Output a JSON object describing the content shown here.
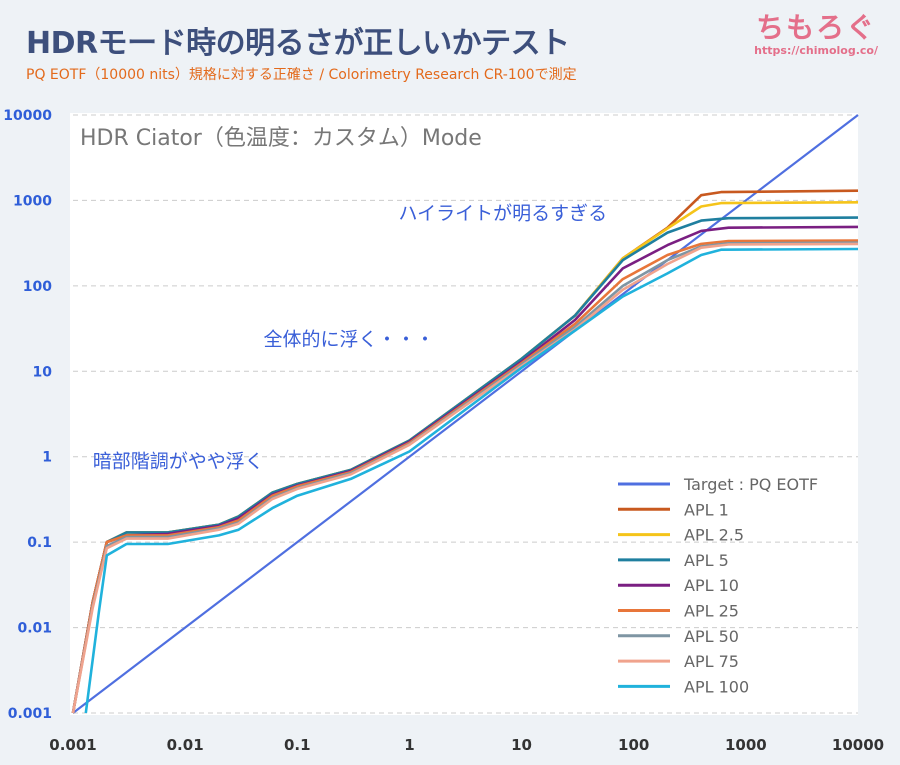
{
  "title": "HDRモード時の明るさが正しいかテスト",
  "subtitle": "PQ EOTF（10000 nits）規格に対する正確さ / Colorimetry Research CR-100で測定",
  "logo": {
    "text": "ちもろぐ",
    "url": "https://chimolog.co/"
  },
  "chart_data": {
    "type": "line",
    "title": "HDR Ciator（色温度：カスタム）Mode",
    "xscale": "log",
    "yscale": "log",
    "xlim": [
      0.001,
      10000
    ],
    "ylim": [
      0.001,
      10000
    ],
    "xticks": [
      "0.001",
      "0.01",
      "0.1",
      "1",
      "10",
      "100",
      "1000",
      "10000"
    ],
    "yticks": [
      "0.001",
      "0.01",
      "0.1",
      "1",
      "10",
      "100",
      "1000",
      "10000"
    ],
    "grid": "horizontal-dashed",
    "legend_position": "bottom-right",
    "annotations": [
      {
        "text": "ハイライトが明るすぎる",
        "x": 0.8,
        "y": 600
      },
      {
        "text": "全体的に浮く・・・",
        "x": 0.05,
        "y": 20
      },
      {
        "text": "暗部階調がやや浮く",
        "x": 0.0015,
        "y": 0.75
      }
    ],
    "series": [
      {
        "name": "Target : PQ EOTF",
        "color": "#4f6fe0",
        "points": [
          [
            0.001,
            0.001
          ],
          [
            10000,
            10000
          ]
        ]
      },
      {
        "name": "APL 1",
        "color": "#c8591f",
        "points": [
          [
            0.001,
            0.001
          ],
          [
            0.0015,
            0.02
          ],
          [
            0.002,
            0.1
          ],
          [
            0.003,
            0.13
          ],
          [
            0.007,
            0.13
          ],
          [
            0.02,
            0.16
          ],
          [
            0.03,
            0.2
          ],
          [
            0.06,
            0.38
          ],
          [
            0.1,
            0.48
          ],
          [
            0.3,
            0.7
          ],
          [
            1,
            1.55
          ],
          [
            10,
            14
          ],
          [
            30,
            45
          ],
          [
            80,
            210
          ],
          [
            200,
            480
          ],
          [
            400,
            1150
          ],
          [
            600,
            1250
          ],
          [
            10000,
            1300
          ]
        ]
      },
      {
        "name": "APL 2.5",
        "color": "#f5c41a",
        "points": [
          [
            0.001,
            0.001
          ],
          [
            0.0015,
            0.02
          ],
          [
            0.002,
            0.1
          ],
          [
            0.003,
            0.13
          ],
          [
            0.007,
            0.13
          ],
          [
            0.02,
            0.16
          ],
          [
            0.03,
            0.2
          ],
          [
            0.06,
            0.38
          ],
          [
            0.1,
            0.48
          ],
          [
            0.3,
            0.7
          ],
          [
            1,
            1.55
          ],
          [
            10,
            14
          ],
          [
            30,
            45
          ],
          [
            80,
            210
          ],
          [
            200,
            470
          ],
          [
            400,
            850
          ],
          [
            600,
            930
          ],
          [
            10000,
            950
          ]
        ]
      },
      {
        "name": "APL 5",
        "color": "#1f7f9f",
        "points": [
          [
            0.001,
            0.001
          ],
          [
            0.0015,
            0.02
          ],
          [
            0.002,
            0.1
          ],
          [
            0.003,
            0.13
          ],
          [
            0.007,
            0.13
          ],
          [
            0.02,
            0.16
          ],
          [
            0.03,
            0.2
          ],
          [
            0.06,
            0.38
          ],
          [
            0.1,
            0.48
          ],
          [
            0.3,
            0.7
          ],
          [
            1,
            1.55
          ],
          [
            10,
            14
          ],
          [
            30,
            45
          ],
          [
            80,
            200
          ],
          [
            200,
            420
          ],
          [
            400,
            580
          ],
          [
            700,
            620
          ],
          [
            10000,
            630
          ]
        ]
      },
      {
        "name": "APL 10",
        "color": "#7a1f82",
        "points": [
          [
            0.001,
            0.001
          ],
          [
            0.0015,
            0.02
          ],
          [
            0.002,
            0.1
          ],
          [
            0.003,
            0.12
          ],
          [
            0.007,
            0.125
          ],
          [
            0.02,
            0.155
          ],
          [
            0.03,
            0.19
          ],
          [
            0.06,
            0.36
          ],
          [
            0.1,
            0.46
          ],
          [
            0.3,
            0.68
          ],
          [
            1,
            1.5
          ],
          [
            10,
            13
          ],
          [
            30,
            40
          ],
          [
            80,
            160
          ],
          [
            200,
            300
          ],
          [
            400,
            440
          ],
          [
            700,
            480
          ],
          [
            10000,
            490
          ]
        ]
      },
      {
        "name": "APL 25",
        "color": "#e8763a",
        "points": [
          [
            0.001,
            0.001
          ],
          [
            0.0015,
            0.02
          ],
          [
            0.002,
            0.1
          ],
          [
            0.003,
            0.12
          ],
          [
            0.007,
            0.12
          ],
          [
            0.02,
            0.15
          ],
          [
            0.03,
            0.18
          ],
          [
            0.06,
            0.35
          ],
          [
            0.1,
            0.45
          ],
          [
            0.3,
            0.66
          ],
          [
            1,
            1.45
          ],
          [
            10,
            12.5
          ],
          [
            30,
            36
          ],
          [
            80,
            120
          ],
          [
            200,
            230
          ],
          [
            400,
            310
          ],
          [
            700,
            335
          ],
          [
            10000,
            340
          ]
        ]
      },
      {
        "name": "APL 50",
        "color": "#7f95a3",
        "points": [
          [
            0.001,
            0.001
          ],
          [
            0.0015,
            0.018
          ],
          [
            0.002,
            0.09
          ],
          [
            0.003,
            0.115
          ],
          [
            0.007,
            0.115
          ],
          [
            0.02,
            0.145
          ],
          [
            0.03,
            0.17
          ],
          [
            0.06,
            0.33
          ],
          [
            0.1,
            0.43
          ],
          [
            0.3,
            0.64
          ],
          [
            1,
            1.4
          ],
          [
            10,
            12
          ],
          [
            30,
            33
          ],
          [
            80,
            100
          ],
          [
            200,
            200
          ],
          [
            400,
            290
          ],
          [
            700,
            315
          ],
          [
            10000,
            320
          ]
        ]
      },
      {
        "name": "APL 75",
        "color": "#f0a38d",
        "points": [
          [
            0.001,
            0.001
          ],
          [
            0.0015,
            0.017
          ],
          [
            0.002,
            0.085
          ],
          [
            0.003,
            0.11
          ],
          [
            0.007,
            0.11
          ],
          [
            0.02,
            0.14
          ],
          [
            0.03,
            0.165
          ],
          [
            0.06,
            0.32
          ],
          [
            0.1,
            0.42
          ],
          [
            0.3,
            0.62
          ],
          [
            1,
            1.38
          ],
          [
            10,
            11.5
          ],
          [
            30,
            31
          ],
          [
            80,
            90
          ],
          [
            200,
            180
          ],
          [
            400,
            280
          ],
          [
            700,
            305
          ],
          [
            10000,
            310
          ]
        ]
      },
      {
        "name": "APL 100",
        "color": "#20b2dc",
        "points": [
          [
            0.0013,
            0.001
          ],
          [
            0.0017,
            0.015
          ],
          [
            0.002,
            0.07
          ],
          [
            0.003,
            0.095
          ],
          [
            0.007,
            0.095
          ],
          [
            0.02,
            0.12
          ],
          [
            0.03,
            0.14
          ],
          [
            0.06,
            0.25
          ],
          [
            0.1,
            0.35
          ],
          [
            0.3,
            0.55
          ],
          [
            1,
            1.15
          ],
          [
            10,
            11
          ],
          [
            30,
            30
          ],
          [
            80,
            75
          ],
          [
            200,
            140
          ],
          [
            400,
            230
          ],
          [
            600,
            265
          ],
          [
            10000,
            270
          ]
        ]
      }
    ]
  }
}
